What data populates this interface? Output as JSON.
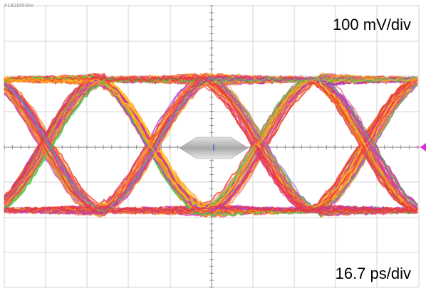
{
  "image_id_label": "F1820f03ks",
  "vertical_scale": "100 mV/div",
  "horizontal_scale": "16.7 ps/div",
  "colors": {
    "grid": "#c8c8c8",
    "axis": "#808080",
    "green": "#3fcc55",
    "purple": "#b03cd8",
    "magenta": "#e0299a",
    "red": "#e83a3a",
    "orange": "#ff8a1a",
    "yellow": "#ffd21a",
    "mask": "#b5b5b5",
    "marker": "#d62fd6"
  },
  "icons": {
    "mask": "eye-mask-hexagon",
    "center": "center-marker",
    "trigger": "trigger-level-marker"
  }
}
